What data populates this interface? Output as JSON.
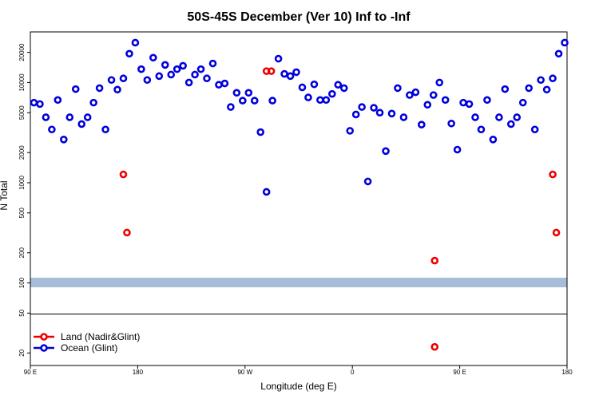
{
  "chart_data": {
    "type": "scatter",
    "title": "50S-45S December (Ver 10)   Inf to -Inf",
    "x_label": "Longitude (deg E)",
    "y_label": "N Total",
    "log_y": true,
    "legend": "lower left",
    "xlim": [
      90,
      540
    ],
    "xticks": [
      {
        "value": 90,
        "label": "90 E"
      },
      {
        "value": 180,
        "label": "180"
      },
      {
        "value": 270,
        "label": "90 W"
      },
      {
        "value": 360,
        "label": "0"
      },
      {
        "value": 450,
        "label": "90 E"
      },
      {
        "value": 540,
        "label": "180"
      }
    ],
    "ylim": [
      15,
      32000
    ],
    "yticks": [
      20,
      50,
      100,
      200,
      500,
      1000,
      2000,
      5000,
      10000,
      20000
    ],
    "series": [
      {
        "name": "Land (Nadir&Glint)",
        "color": "#ee0000",
        "x": [
          168,
          171,
          288,
          292,
          429,
          429,
          528,
          531
        ],
        "values": [
          1210,
          318,
          13000,
          13000,
          167,
          23,
          1210,
          318
        ]
      },
      {
        "name": "Ocean (Glint)",
        "color": "#0000dd",
        "x": [
          93,
          98,
          103,
          108,
          113,
          118,
          123,
          128,
          133,
          138,
          143,
          148,
          153,
          158,
          163,
          168,
          173,
          178,
          183,
          188,
          193,
          198,
          203,
          208,
          213,
          218,
          223,
          228,
          233,
          238,
          243,
          248,
          253,
          258,
          263,
          268,
          273,
          278,
          283,
          288,
          293,
          298,
          303,
          308,
          313,
          318,
          323,
          328,
          333,
          338,
          343,
          348,
          353,
          358,
          363,
          368,
          373,
          378,
          383,
          388,
          393,
          398,
          403,
          408,
          413,
          418,
          423,
          428,
          433,
          438,
          443,
          448,
          453,
          458,
          463,
          468,
          473,
          478,
          483,
          488,
          493,
          498,
          503,
          508,
          513,
          518,
          523,
          528,
          533,
          538
        ],
        "values": [
          6300,
          6100,
          4500,
          3400,
          6700,
          2700,
          4500,
          8600,
          3850,
          4500,
          6300,
          8800,
          3400,
          10600,
          8500,
          11000,
          19400,
          25000,
          13600,
          10600,
          17700,
          11600,
          15000,
          12000,
          13600,
          14700,
          10000,
          12000,
          13600,
          11000,
          15500,
          9500,
          9800,
          5700,
          7900,
          6600,
          7900,
          6600,
          3200,
          810,
          6600,
          17300,
          12200,
          11600,
          12700,
          8950,
          7100,
          9600,
          6700,
          6700,
          7700,
          9500,
          8800,
          3300,
          4800,
          5700,
          1030,
          5600,
          5000,
          2070,
          4900,
          8800,
          4500,
          7500,
          8000,
          3800,
          6000,
          7500,
          10000,
          6700,
          3900,
          2140,
          6300,
          6100,
          4500,
          3400,
          6700,
          2700,
          4500,
          8600,
          3850,
          4500,
          6300,
          8800,
          3400,
          10600,
          8500,
          11000,
          19400,
          25000
        ]
      }
    ]
  }
}
